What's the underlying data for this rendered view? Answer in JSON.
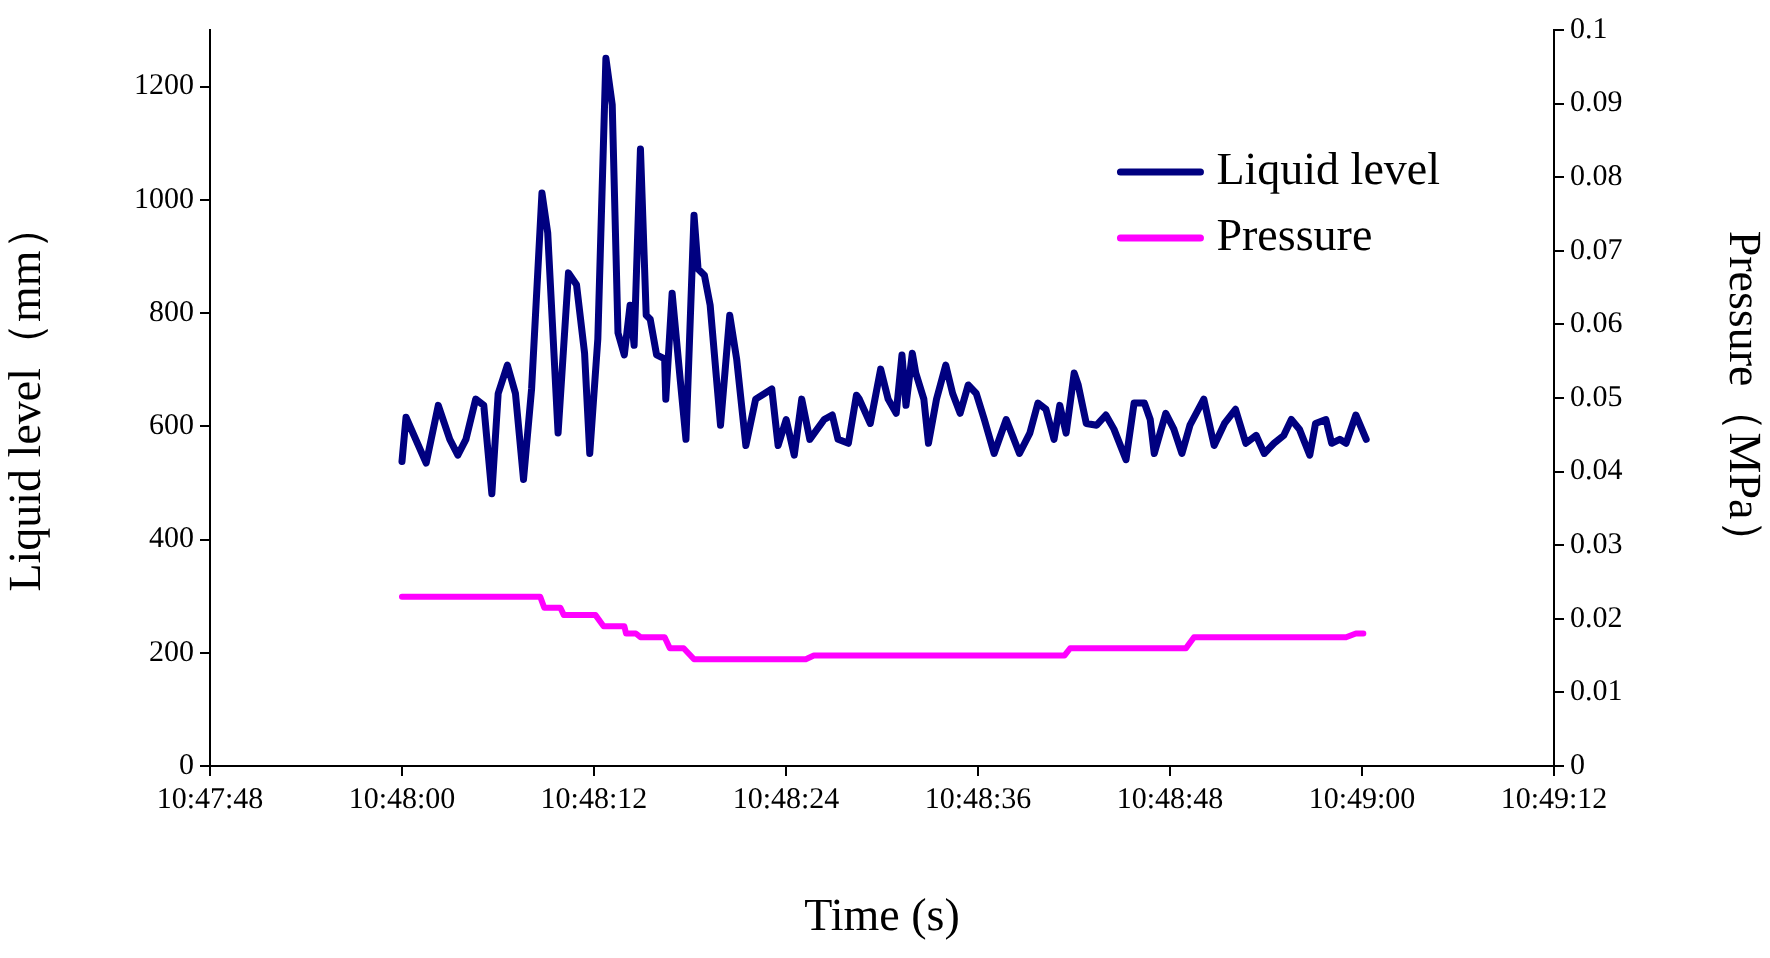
{
  "chart_data": {
    "type": "line",
    "xlabel": "Time (s)",
    "ylabel": "Liquid level（mm）",
    "y2label": "Pressure（MPa）",
    "xlim": [
      10.796667,
      10.82
    ],
    "xticks": [
      {
        "value": 10.796667,
        "label": "10:47:48"
      },
      {
        "value": 10.8,
        "label": "10:48:00"
      },
      {
        "value": 10.803333,
        "label": "10:48:12"
      },
      {
        "value": 10.806667,
        "label": "10:48:24"
      },
      {
        "value": 10.81,
        "label": "10:48:36"
      },
      {
        "value": 10.813333,
        "label": "10:48:48"
      },
      {
        "value": 10.816667,
        "label": "10:49:00"
      },
      {
        "value": 10.82,
        "label": "10:49:12"
      }
    ],
    "ylim": [
      0,
      1300
    ],
    "yticks": [
      0,
      200,
      400,
      600,
      800,
      1000,
      1200
    ],
    "y2lim": [
      0,
      0.1
    ],
    "y2ticks": [
      0,
      0.01,
      0.02,
      0.03,
      0.04,
      0.05,
      0.06,
      0.07,
      0.08,
      0.09,
      0.1
    ],
    "grid": false,
    "legend": "top right",
    "marker": "none",
    "line_style": "solid",
    "series": [
      {
        "name": "Liquid level",
        "color": "#000080",
        "x": [
          10.8,
          10.80007,
          10.80042,
          10.80063,
          10.80083,
          10.80097,
          10.80111,
          10.80128,
          10.80142,
          10.80156,
          10.80167,
          10.80183,
          10.80197,
          10.80211,
          10.80225,
          10.80243,
          10.80253,
          10.80271,
          10.80289,
          10.80303,
          10.80317,
          10.80326,
          10.8034,
          10.80354,
          10.80365,
          10.80375,
          10.80386,
          10.80396,
          10.80403,
          10.80414,
          10.80424,
          10.80431,
          10.80442,
          10.80456,
          10.80458,
          10.80469,
          10.80483,
          10.80493,
          10.80507,
          10.80514,
          10.80525,
          10.80535,
          10.80553,
          10.80569,
          10.80581,
          10.80597,
          10.80614,
          10.80642,
          10.80653,
          10.80667,
          10.80681,
          10.80694,
          10.80708,
          10.80733,
          10.80747,
          10.80757,
          10.80775,
          10.80789,
          10.80794,
          10.80813,
          10.80831,
          10.80844,
          10.80858,
          10.80868,
          10.80875,
          10.80886,
          10.80892,
          10.80906,
          10.80914,
          10.80928,
          10.80944,
          10.80956,
          10.80969,
          10.80983,
          10.80997,
          10.81011,
          10.81028,
          10.81049,
          10.81072,
          10.8109,
          10.81104,
          10.81118,
          10.81132,
          10.81142,
          10.81153,
          10.81167,
          10.81174,
          10.81188,
          10.81206,
          10.81222,
          10.81236,
          10.81257,
          10.81271,
          10.81289,
          10.81299,
          10.81306,
          10.81326,
          10.8134,
          10.81354,
          10.81368,
          10.81392,
          10.8141,
          10.81428,
          10.81447,
          10.81465,
          10.81483,
          10.81497,
          10.81514,
          10.81531,
          10.81544,
          10.81558,
          10.81576,
          10.81586,
          10.81604,
          10.81614,
          10.81628,
          10.81639,
          10.81656,
          10.81674
        ],
        "values": [
          538,
          616,
          535,
          637,
          577,
          549,
          577,
          648,
          637,
          481,
          658,
          708,
          658,
          506,
          666,
          1012,
          942,
          588,
          871,
          850,
          729,
          552,
          754,
          1250,
          1168,
          765,
          726,
          814,
          743,
          1090,
          796,
          789,
          726,
          719,
          648,
          835,
          683,
          577,
          973,
          878,
          867,
          814,
          602,
          796,
          719,
          566,
          648,
          666,
          566,
          612,
          549,
          648,
          577,
          612,
          620,
          577,
          570,
          655,
          648,
          605,
          701,
          648,
          623,
          726,
          637,
          729,
          694,
          648,
          570,
          648,
          708,
          658,
          623,
          673,
          658,
          612,
          552,
          612,
          552,
          588,
          641,
          630,
          577,
          637,
          588,
          694,
          673,
          605,
          602,
          620,
          595,
          541,
          641,
          641,
          612,
          552,
          623,
          595,
          552,
          602,
          648,
          566,
          605,
          630,
          570,
          584,
          552,
          570,
          584,
          612,
          595,
          549,
          605,
          612,
          570,
          577,
          570,
          620,
          577
        ]
      },
      {
        "name": "Pressure",
        "color": "#ff00ff",
        "axis": "y2",
        "x": [
          10.8,
          10.8024,
          10.80247,
          10.80275,
          10.80281,
          10.80336,
          10.8035,
          10.80386,
          10.80389,
          10.80406,
          10.80414,
          10.80456,
          10.80465,
          10.80489,
          10.80507,
          10.80701,
          10.80715,
          10.8115,
          10.8116,
          10.81361,
          10.81375,
          10.81639,
          10.81656,
          10.81669
        ],
        "values": [
          0.023,
          0.023,
          0.0215,
          0.0215,
          0.0205,
          0.0205,
          0.019,
          0.019,
          0.018,
          0.018,
          0.0175,
          0.0175,
          0.016,
          0.016,
          0.0145,
          0.0145,
          0.015,
          0.015,
          0.016,
          0.016,
          0.0175,
          0.0175,
          0.018,
          0.018
        ]
      }
    ]
  }
}
